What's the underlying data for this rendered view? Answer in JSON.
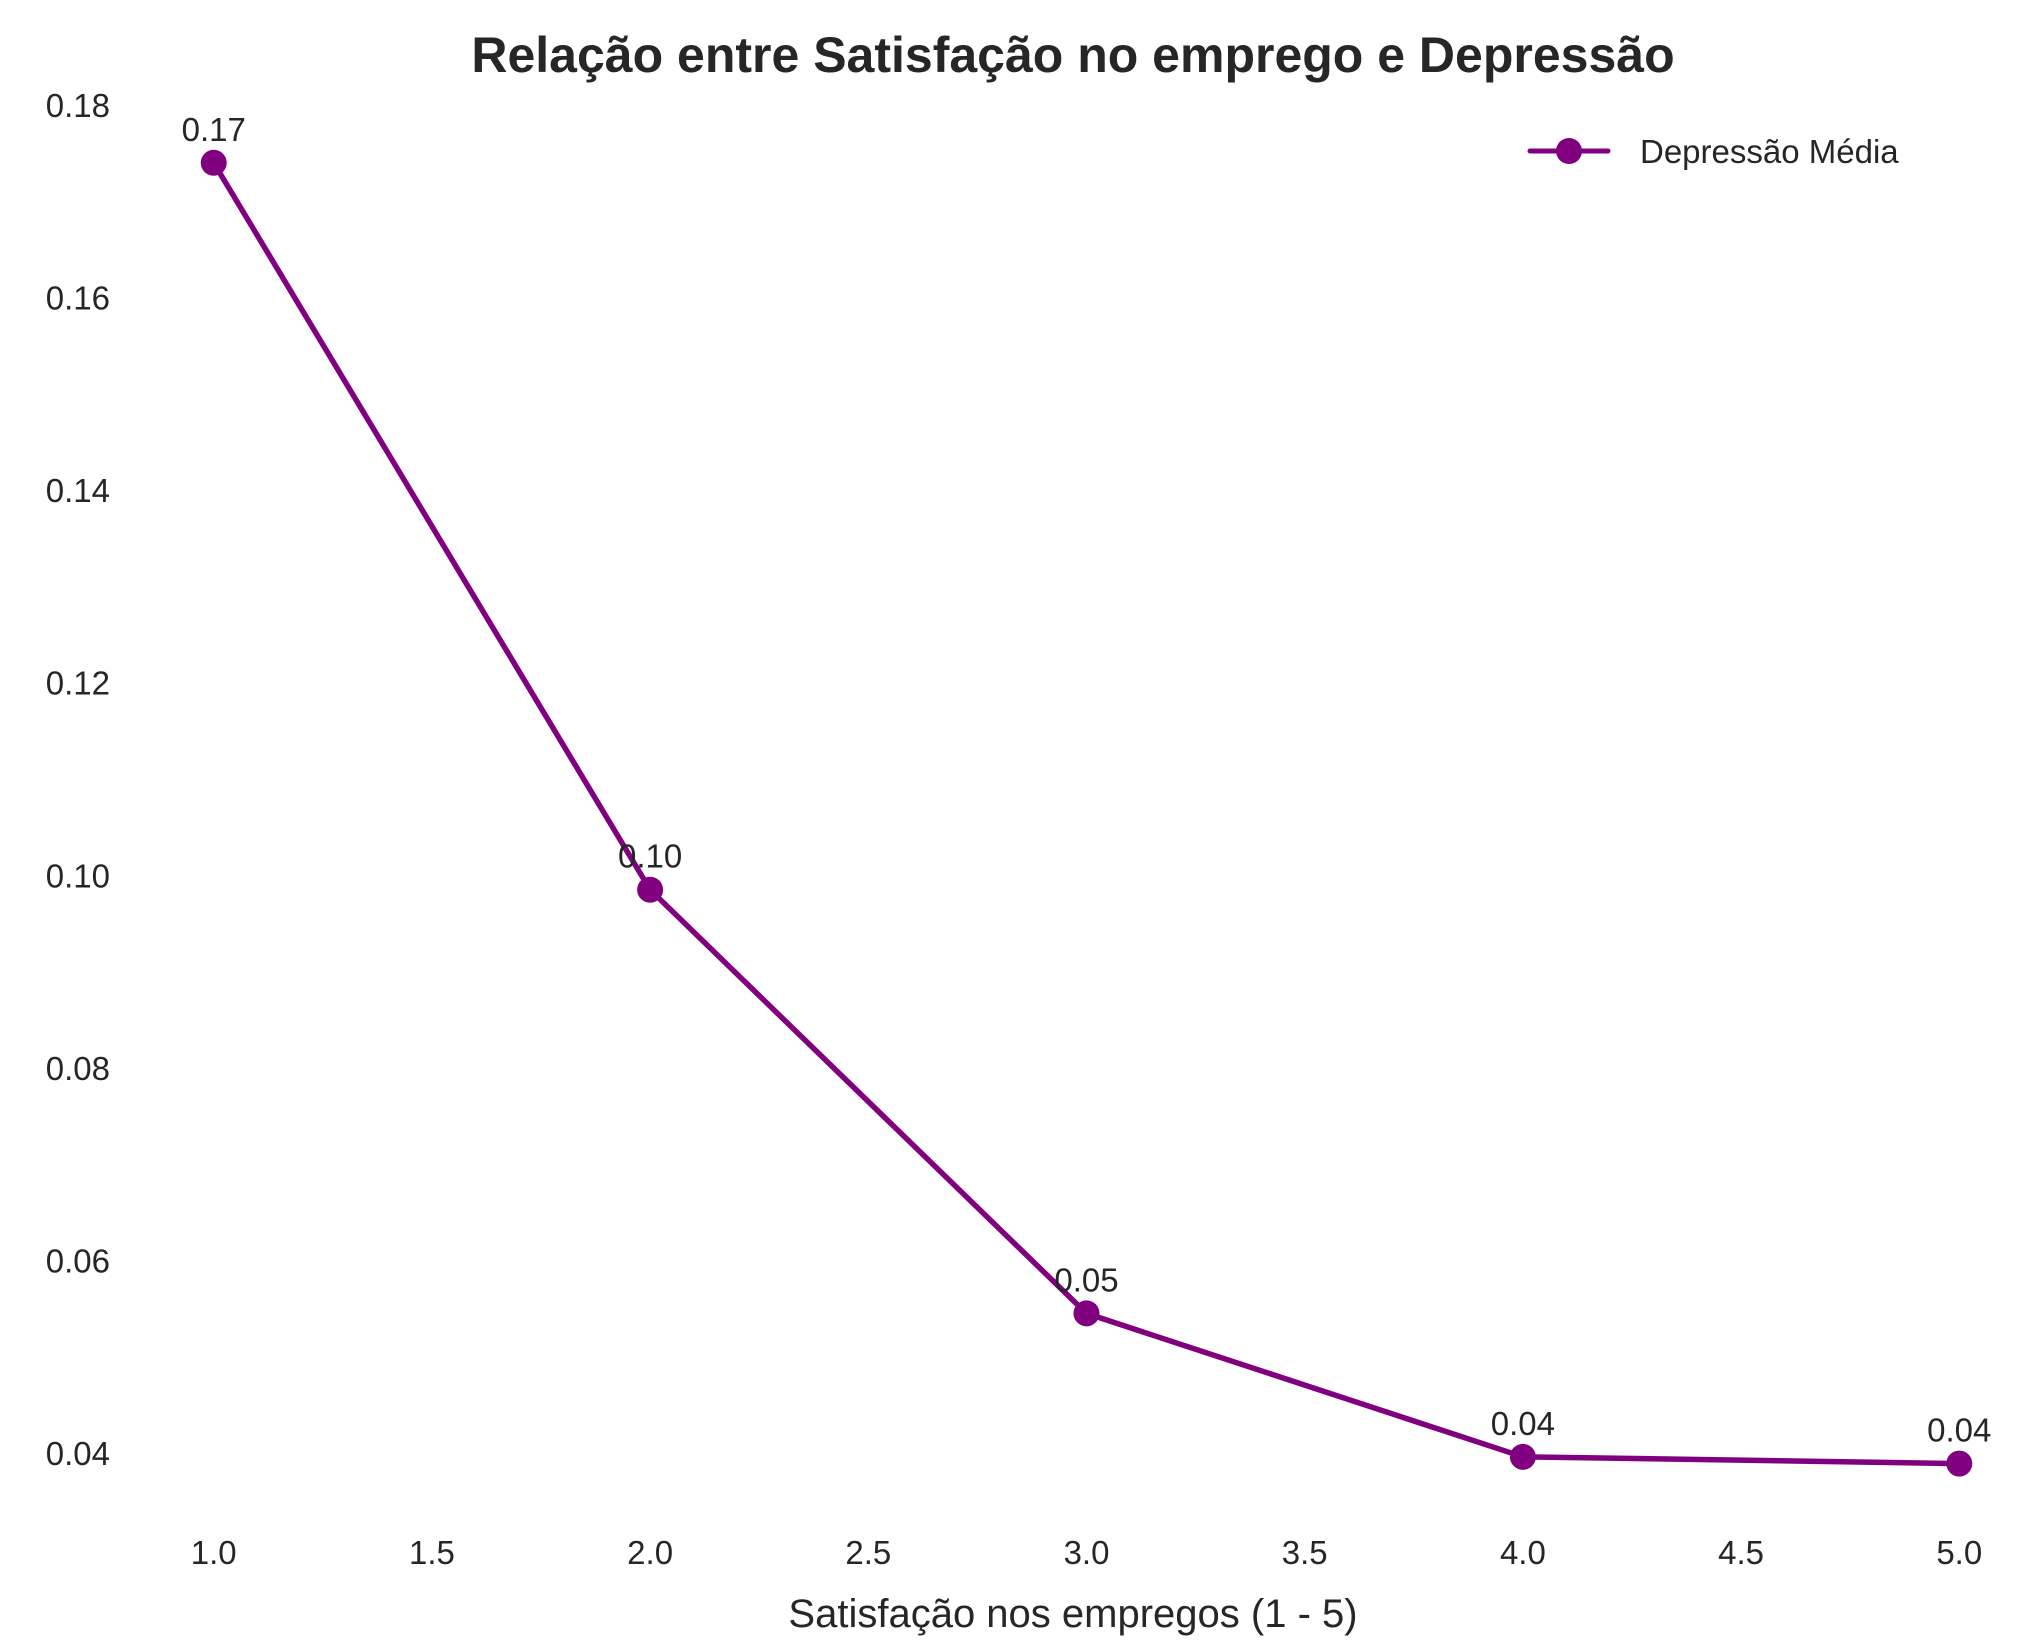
{
  "chart_data": {
    "type": "line",
    "title": "Relação entre Satisfação no emprego e Depressão",
    "xlabel": "Satisfação nos empregos (1 - 5)",
    "ylabel": "",
    "xlim": [
      0.98,
      5.02
    ],
    "ylim": [
      0.032,
      0.18
    ],
    "xticks": [
      "1.0",
      "1.5",
      "2.0",
      "2.5",
      "3.0",
      "3.5",
      "4.0",
      "4.5",
      "5.0"
    ],
    "yticks": [
      "0.04",
      "0.06",
      "0.08",
      "0.10",
      "0.12",
      "0.14",
      "0.16",
      "0.18"
    ],
    "grid": false,
    "legend_position": "top-right",
    "color": "#800080",
    "series": [
      {
        "name": "Depressão Média",
        "x": [
          1,
          2,
          3,
          4,
          5
        ],
        "y": [
          0.174,
          0.0985,
          0.0545,
          0.0396,
          0.0389
        ],
        "labels": [
          "0.17",
          "0.10",
          "0.05",
          "0.04",
          "0.04"
        ]
      }
    ]
  }
}
